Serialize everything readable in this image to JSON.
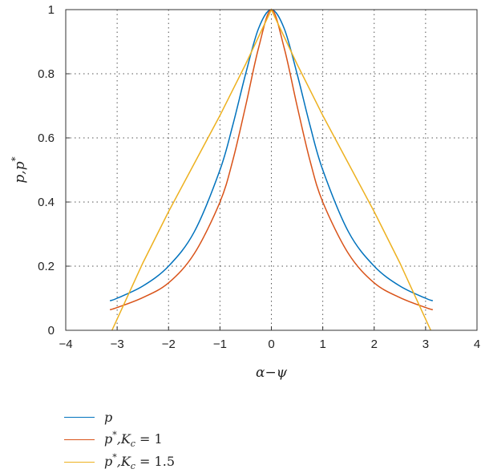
{
  "chart_data": {
    "type": "line",
    "xlabel": "α−ψ",
    "ylabel": "p,p*",
    "xlim": [
      -4,
      4
    ],
    "ylim": [
      0,
      1
    ],
    "x_ticks": [
      "−4",
      "−3",
      "−2",
      "−1",
      "0",
      "1",
      "2",
      "3",
      "4"
    ],
    "y_ticks": [
      "0",
      "0.2",
      "0.4",
      "0.6",
      "0.8",
      "1"
    ],
    "grid": "dotted",
    "legend_position": "bottom-left",
    "series": [
      {
        "name": "p",
        "color": "#0072bd",
        "x": [
          -3.14,
          -3.0,
          -2.5,
          -2.0,
          -1.5,
          -1.0,
          -0.75,
          -0.5,
          -0.25,
          0,
          0.25,
          0.5,
          0.75,
          1.0,
          1.5,
          2.0,
          2.5,
          3.0,
          3.14
        ],
        "y": [
          0.092,
          0.1,
          0.138,
          0.2,
          0.307,
          0.5,
          0.64,
          0.8,
          0.941,
          1.0,
          0.941,
          0.8,
          0.64,
          0.5,
          0.307,
          0.2,
          0.138,
          0.1,
          0.092
        ]
      },
      {
        "name": "p*,K_c = 1",
        "color": "#d95319",
        "x": [
          -3.14,
          -3.0,
          -2.5,
          -2.0,
          -1.5,
          -1.0,
          -0.75,
          -0.5,
          -0.25,
          0,
          0.25,
          0.5,
          0.75,
          1.0,
          1.5,
          2.0,
          2.5,
          3.0,
          3.14
        ],
        "y": [
          0.064,
          0.071,
          0.102,
          0.148,
          0.239,
          0.4,
          0.53,
          0.7,
          0.88,
          1.0,
          0.88,
          0.7,
          0.53,
          0.4,
          0.239,
          0.148,
          0.102,
          0.071,
          0.064
        ]
      },
      {
        "name": "p*,K_c = 1.5",
        "color": "#edb120",
        "x": [
          -3.1,
          -2.5,
          -2.0,
          -1.5,
          -1.0,
          -0.5,
          0,
          0.5,
          1.0,
          1.5,
          2.0,
          2.5,
          3.1
        ],
        "y": [
          0.0,
          0.21,
          0.37,
          0.52,
          0.67,
          0.83,
          1.0,
          0.83,
          0.67,
          0.52,
          0.37,
          0.21,
          0.0
        ]
      }
    ],
    "legend": [
      {
        "main": "p",
        "sup": "",
        "mid": "",
        "sub": "",
        "tail": ""
      },
      {
        "main": "p",
        "sup": "*",
        "mid": ",K",
        "sub": "c",
        "tail": " = 1"
      },
      {
        "main": "p",
        "sup": "*",
        "mid": ",K",
        "sub": "c",
        "tail": " = 1.5"
      }
    ]
  }
}
